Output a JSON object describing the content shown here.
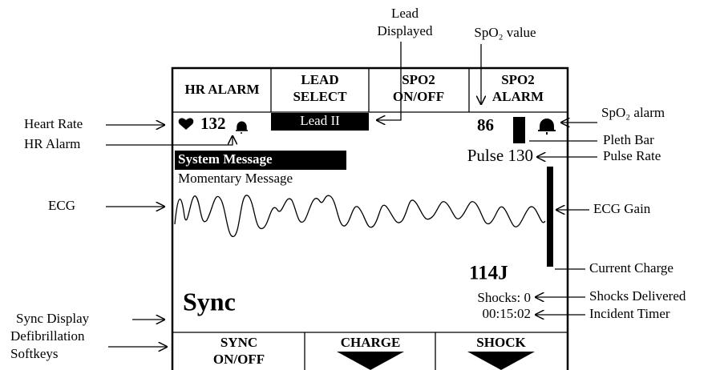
{
  "top_softkeys": [
    [
      "HR ALARM"
    ],
    [
      "LEAD",
      "SELECT"
    ],
    [
      "SPO2",
      "ON/OFF"
    ],
    [
      "SPO2",
      "ALARM"
    ]
  ],
  "screen": {
    "heart_rate": "132",
    "lead": "Lead II",
    "spo2": "86",
    "system_message": "System Message",
    "pulse": "Pulse 130",
    "momentary_message": "Momentary Message",
    "charge": "114J",
    "sync": "Sync",
    "shocks": "Shocks: 0",
    "timer": "00:15:02"
  },
  "bottom_softkeys": [
    [
      "SYNC",
      "ON/OFF"
    ],
    [
      "CHARGE"
    ],
    [
      "SHOCK"
    ]
  ],
  "callouts": {
    "lead_displayed": [
      "Lead",
      "Displayed"
    ],
    "spo2_value": "SpO₂ value",
    "heart_rate": "Heart Rate",
    "hr_alarm": "HR Alarm",
    "ecg": "ECG",
    "sync_display": "Sync Display",
    "defib_softkeys": [
      "Defibrillation",
      "Softkeys"
    ],
    "spo2_alarm": "SpO₂ alarm",
    "pleth_bar": "Pleth Bar",
    "pulse_rate": "Pulse Rate",
    "ecg_gain": "ECG Gain",
    "current_charge": "Current Charge",
    "shocks_delivered": "Shocks Delivered",
    "incident_timer": "Incident Timer"
  }
}
